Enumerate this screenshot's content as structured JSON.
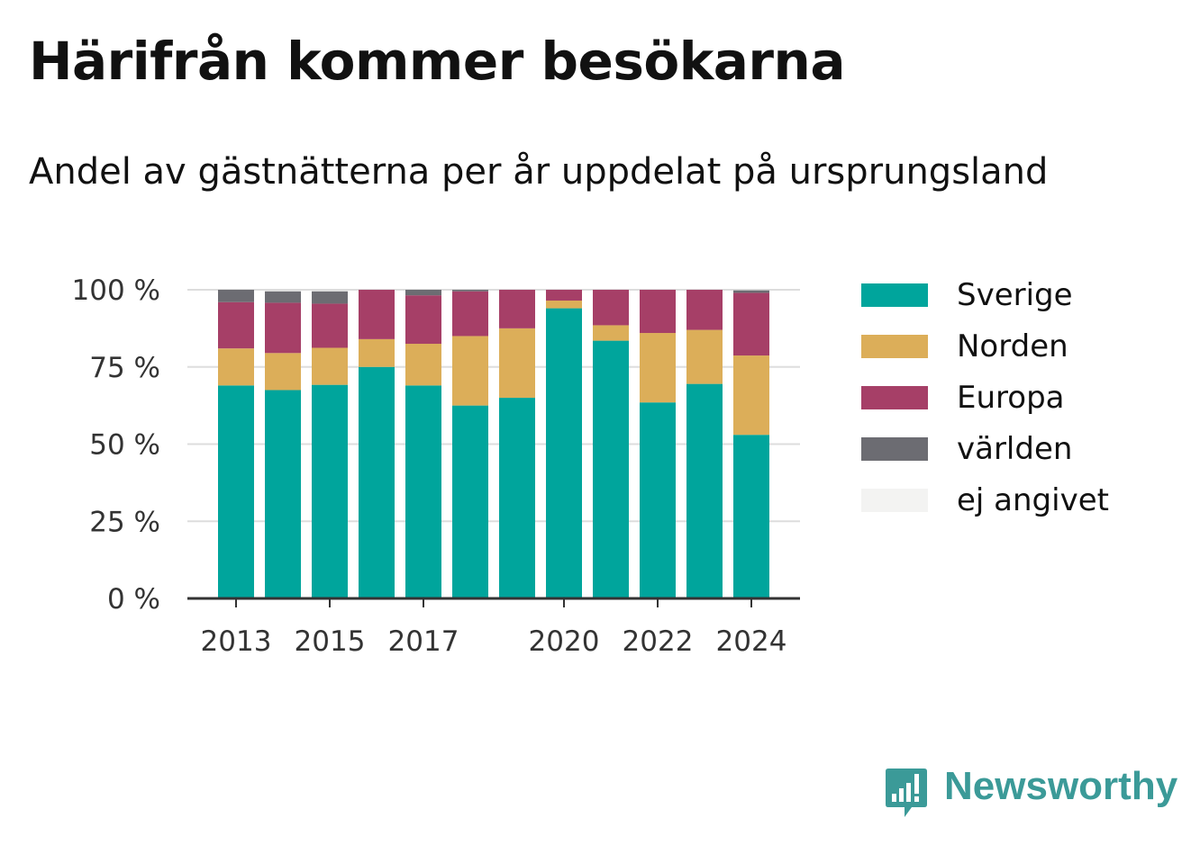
{
  "header": {
    "title": "Härifrån kommer besökarna",
    "subtitle": "Andel av gästnätterna per år uppdelat på ursprungsland"
  },
  "brand": {
    "name": "Newsworthy",
    "icon": "newsworthy-logo-icon",
    "color": "#3b9a98"
  },
  "chart_data": {
    "type": "bar",
    "stacked": true,
    "categories": [
      2013,
      2014,
      2015,
      2016,
      2017,
      2018,
      2019,
      2020,
      2021,
      2022,
      2023,
      2024
    ],
    "x_tick_labels": [
      "2013",
      "2015",
      "2017",
      "2020",
      "2022",
      "2024"
    ],
    "y_ticks": [
      {
        "value": 0,
        "label": "0 %"
      },
      {
        "value": 25,
        "label": "25 %"
      },
      {
        "value": 50,
        "label": "50 %"
      },
      {
        "value": 75,
        "label": "75 %"
      },
      {
        "value": 100,
        "label": "100 %"
      }
    ],
    "ylim": [
      0,
      100
    ],
    "grid": true,
    "legend_position": "right",
    "series": [
      {
        "name": "Sverige",
        "color": "#00a59c",
        "values": [
          69,
          67.5,
          69.2,
          75,
          69,
          62.5,
          65,
          94,
          83.5,
          63.5,
          69.5,
          53
        ]
      },
      {
        "name": "Norden",
        "color": "#dcae59",
        "values": [
          12,
          12,
          12,
          9,
          13.5,
          22.5,
          22.5,
          2.5,
          5,
          22.5,
          17.5,
          25.7
        ]
      },
      {
        "name": "Europa",
        "color": "#a63f67",
        "values": [
          15,
          16.3,
          14.3,
          16,
          15.7,
          14.5,
          12.5,
          3.5,
          11.5,
          14,
          13,
          20.3
        ]
      },
      {
        "name": "världen",
        "color": "#6c6c72",
        "values": [
          4,
          3.7,
          4,
          0,
          1.8,
          0.5,
          0,
          0,
          0,
          0,
          0,
          0.8
        ]
      },
      {
        "name": "ej angivet",
        "color": "#f3f3f2",
        "values": [
          0,
          0,
          0,
          0,
          0,
          0,
          0,
          0,
          0,
          0,
          0,
          0
        ]
      }
    ]
  }
}
